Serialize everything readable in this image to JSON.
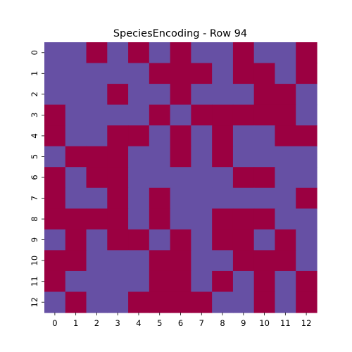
{
  "chart_data": {
    "type": "heatmap",
    "title": "SpeciesEncoding - Row 94",
    "xlabel": "",
    "ylabel": "",
    "x_tick_labels": [
      "0",
      "1",
      "2",
      "3",
      "4",
      "5",
      "6",
      "7",
      "8",
      "9",
      "10",
      "11",
      "12"
    ],
    "y_tick_labels": [
      "0",
      "1",
      "2",
      "3",
      "4",
      "5",
      "6",
      "7",
      "8",
      "9",
      "10",
      "11",
      "12"
    ],
    "colors": {
      "0": "#6650a4",
      "1": "#9b0041"
    },
    "values": [
      [
        0,
        0,
        1,
        0,
        1,
        0,
        1,
        0,
        0,
        1,
        0,
        0,
        1
      ],
      [
        0,
        0,
        0,
        0,
        0,
        1,
        1,
        1,
        0,
        1,
        1,
        0,
        1
      ],
      [
        0,
        0,
        0,
        1,
        0,
        0,
        1,
        0,
        0,
        0,
        1,
        1,
        0
      ],
      [
        1,
        0,
        0,
        0,
        0,
        1,
        0,
        1,
        1,
        1,
        1,
        1,
        0
      ],
      [
        1,
        0,
        0,
        1,
        1,
        0,
        1,
        0,
        1,
        0,
        0,
        1,
        1
      ],
      [
        0,
        1,
        1,
        1,
        0,
        0,
        1,
        0,
        1,
        0,
        0,
        0,
        0
      ],
      [
        1,
        0,
        1,
        1,
        0,
        0,
        0,
        0,
        0,
        1,
        1,
        0,
        0
      ],
      [
        1,
        0,
        0,
        1,
        0,
        1,
        0,
        0,
        0,
        0,
        0,
        0,
        1
      ],
      [
        1,
        1,
        1,
        1,
        0,
        1,
        0,
        0,
        1,
        1,
        1,
        0,
        0
      ],
      [
        0,
        1,
        0,
        1,
        1,
        0,
        1,
        0,
        1,
        1,
        0,
        1,
        0
      ],
      [
        1,
        1,
        0,
        0,
        0,
        1,
        1,
        0,
        0,
        1,
        1,
        1,
        0
      ],
      [
        1,
        0,
        0,
        0,
        0,
        1,
        1,
        0,
        1,
        0,
        1,
        0,
        1
      ],
      [
        0,
        1,
        0,
        0,
        1,
        1,
        1,
        1,
        0,
        0,
        1,
        0,
        1
      ]
    ]
  }
}
